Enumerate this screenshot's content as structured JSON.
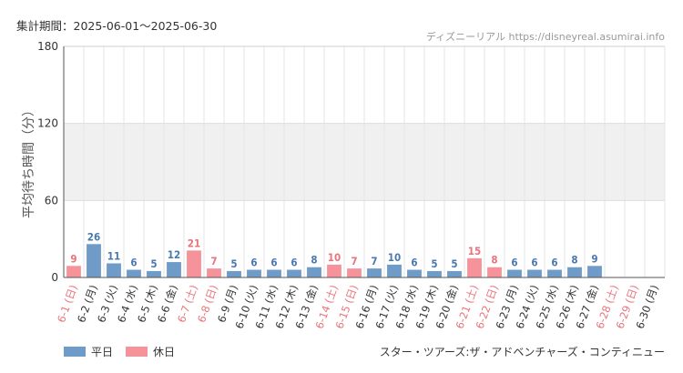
{
  "header": {
    "period": "集計期間：2025-06-01～2025-06-30",
    "source_site": "ディズニーリアル",
    "source_url": "https://disneyreal.asumirai.info"
  },
  "footer": {
    "attraction": "スター・ツアーズ:ザ・アドベンチャーズ・コンティニュー"
  },
  "colors": {
    "weekday": "#6f9bc8",
    "holiday": "#f6939a",
    "weekday_label": "#4a79ad",
    "holiday_label": "#e9747c",
    "band": "#f0f0f0"
  },
  "chart_data": {
    "type": "bar",
    "ylabel": "平均待ち時間（分）",
    "ylim": [
      0,
      180
    ],
    "yticks": [
      0,
      60,
      120,
      180
    ],
    "shaded_band": [
      60,
      120
    ],
    "grid": "vertical",
    "legend_position": "bottom-left",
    "series": [
      {
        "name": "平日",
        "color": "#6f9bc8"
      },
      {
        "name": "休日",
        "color": "#f6939a"
      }
    ],
    "categories": [
      "6-1 (日)",
      "6-2 (月)",
      "6-3 (火)",
      "6-4 (水)",
      "6-5 (木)",
      "6-6 (金)",
      "6-7 (土)",
      "6-8 (日)",
      "6-9 (月)",
      "6-10 (火)",
      "6-11 (水)",
      "6-12 (木)",
      "6-13 (金)",
      "6-14 (土)",
      "6-15 (日)",
      "6-16 (月)",
      "6-17 (火)",
      "6-18 (水)",
      "6-19 (木)",
      "6-20 (金)",
      "6-21 (土)",
      "6-22 (日)",
      "6-23 (月)",
      "6-24 (火)",
      "6-25 (水)",
      "6-26 (木)",
      "6-27 (金)",
      "6-28 (土)",
      "6-29 (日)",
      "6-30 (月)"
    ],
    "values": [
      9,
      26,
      11,
      6,
      5,
      12,
      21,
      7,
      5,
      6,
      6,
      6,
      8,
      10,
      7,
      7,
      10,
      6,
      5,
      5,
      15,
      8,
      6,
      6,
      6,
      8,
      9,
      null,
      null,
      null
    ],
    "day_type": [
      "holiday",
      "weekday",
      "weekday",
      "weekday",
      "weekday",
      "weekday",
      "holiday",
      "holiday",
      "weekday",
      "weekday",
      "weekday",
      "weekday",
      "weekday",
      "holiday",
      "holiday",
      "weekday",
      "weekday",
      "weekday",
      "weekday",
      "weekday",
      "holiday",
      "holiday",
      "weekday",
      "weekday",
      "weekday",
      "weekday",
      "weekday",
      "holiday",
      "holiday",
      "weekday"
    ]
  }
}
